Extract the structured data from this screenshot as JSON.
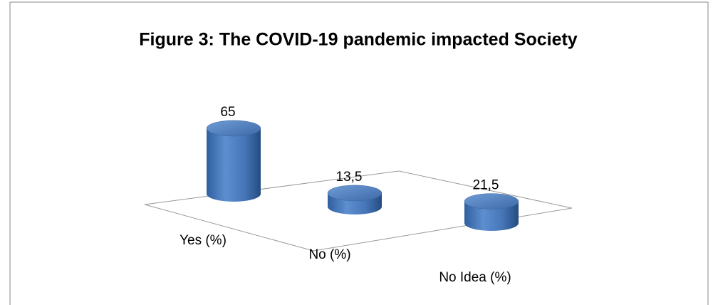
{
  "chart_data": {
    "type": "cylinder",
    "title": "Figure 3: The COVID-19 pandemic impacted Society",
    "categories": [
      "Yes (%)",
      "No (%)",
      "No Idea (%)"
    ],
    "values": [
      65,
      13.5,
      21.5
    ],
    "value_labels": [
      "65",
      "13,5",
      "21,5"
    ],
    "color": "#4f81bd"
  }
}
